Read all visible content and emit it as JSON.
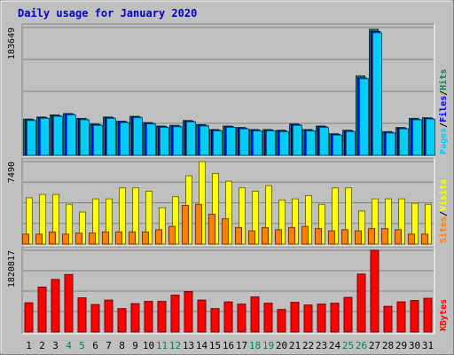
{
  "chart_data": {
    "type": "bar",
    "title": "Daily usage for January 2020",
    "categories": [
      "1",
      "2",
      "3",
      "4",
      "5",
      "6",
      "7",
      "8",
      "9",
      "10",
      "11",
      "12",
      "13",
      "14",
      "15",
      "16",
      "17",
      "18",
      "19",
      "20",
      "21",
      "22",
      "23",
      "24",
      "25",
      "26",
      "27",
      "28",
      "29",
      "30",
      "31"
    ],
    "weekend_days": [
      "4",
      "5",
      "11",
      "12",
      "18",
      "19",
      "25",
      "26"
    ],
    "panels": [
      {
        "id": "hits-files",
        "ymax_label": "183649",
        "ylim": [
          0,
          183649
        ],
        "series": [
          {
            "name": "Hits",
            "color": "#00805c",
            "values": [
              52000,
              55000,
              58000,
              60000,
              53000,
              45000,
              55000,
              49000,
              56000,
              47000,
              42000,
              43000,
              50000,
              44000,
              37000,
              42000,
              40000,
              37000,
              37000,
              36000,
              45000,
              37000,
              42000,
              31000,
              36000,
              114000,
              181000,
              34000,
              40000,
              53000,
              54000
            ]
          },
          {
            "name": "Files",
            "color": "#0000ff",
            "values": [
              51000,
              54000,
              57000,
              59000,
              52000,
              44000,
              54000,
              48000,
              55000,
              46000,
              41000,
              42000,
              49000,
              43000,
              36000,
              41000,
              39000,
              36000,
              36000,
              35000,
              44000,
              36000,
              41000,
              30000,
              35000,
              111000,
              178000,
              33000,
              39000,
              52000,
              53000
            ]
          },
          {
            "name": "Pages",
            "color": "#00ccff",
            "values": [
              50000,
              53000,
              56000,
              58000,
              51000,
              43000,
              53000,
              47000,
              54000,
              45000,
              40000,
              41000,
              48000,
              42000,
              35000,
              40000,
              38000,
              35000,
              35000,
              34000,
              43000,
              35000,
              40000,
              29000,
              34000,
              110000,
              176000,
              32000,
              38000,
              51000,
              52000
            ]
          }
        ]
      },
      {
        "id": "visits-sites",
        "ymax_label": "7490",
        "ylim": [
          0,
          7490
        ],
        "series": [
          {
            "name": "Visits",
            "color": "#ffff00",
            "values": [
              4200,
              4500,
              4500,
              3600,
              2900,
              4100,
              4100,
              5100,
              5100,
              4800,
              3300,
              4300,
              6200,
              7490,
              6400,
              5700,
              5100,
              4800,
              5300,
              4000,
              4100,
              4400,
              3600,
              5100,
              5100,
              3000,
              4100,
              4100,
              4100,
              3700,
              3600
            ]
          },
          {
            "name": "Sites",
            "color": "#ff8000",
            "values": [
              900,
              900,
              1100,
              900,
              1000,
              1000,
              1100,
              1100,
              1100,
              1100,
              1300,
              1600,
              3500,
              3600,
              2700,
              2300,
              1500,
              1200,
              1500,
              1300,
              1500,
              1600,
              1400,
              1200,
              1300,
              1200,
              1400,
              1400,
              1300,
              900,
              900
            ]
          }
        ]
      },
      {
        "id": "kbytes",
        "ymax_label": "1820817",
        "ylim": [
          0,
          1820817
        ],
        "series": [
          {
            "name": "KBytes",
            "color": "#ff0000",
            "values": [
              650000,
              1000000,
              1170000,
              1280000,
              760000,
              610000,
              710000,
              520000,
              630000,
              680000,
              680000,
              820000,
              900000,
              710000,
              520000,
              670000,
              620000,
              780000,
              640000,
              500000,
              660000,
              600000,
              620000,
              640000,
              770000,
              1290000,
              1820817,
              570000,
              670000,
              700000,
              750000
            ]
          }
        ]
      }
    ]
  }
}
